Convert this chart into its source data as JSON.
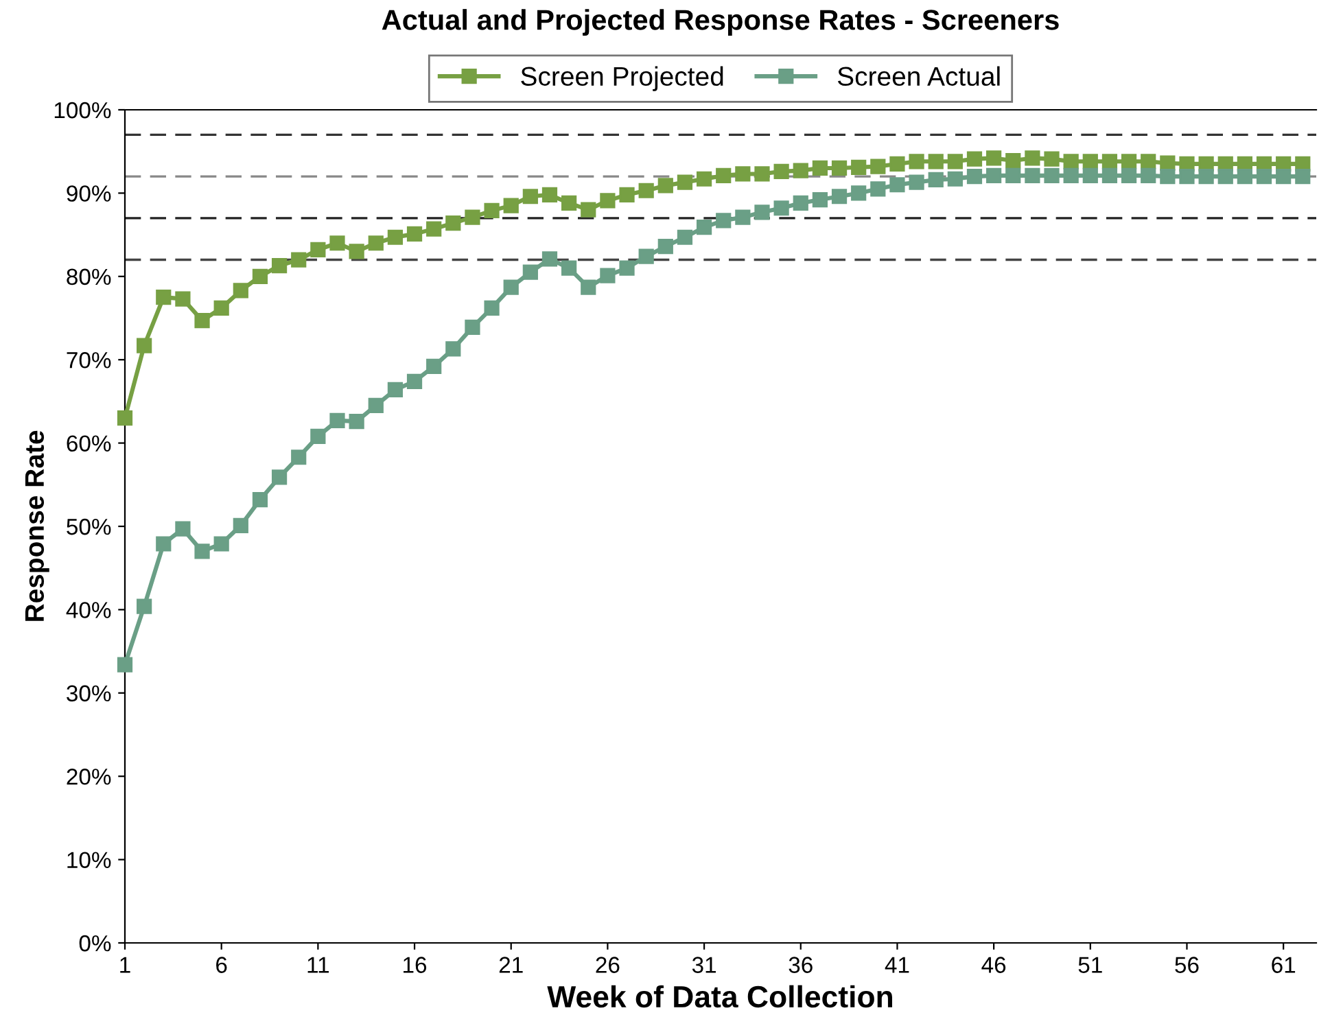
{
  "chart_data": {
    "type": "line",
    "title": "Actual and Projected Response Rates - Screeners",
    "xlabel": "Week of Data Collection",
    "ylabel": "Response Rate",
    "x": [
      1,
      2,
      3,
      4,
      5,
      6,
      7,
      8,
      9,
      10,
      11,
      12,
      13,
      14,
      15,
      16,
      17,
      18,
      19,
      20,
      21,
      22,
      23,
      24,
      25,
      26,
      27,
      28,
      29,
      30,
      31,
      32,
      33,
      34,
      35,
      36,
      37,
      38,
      39,
      40,
      41,
      42,
      43,
      44,
      45,
      46,
      47,
      48,
      49,
      50,
      51,
      52,
      53,
      54,
      55,
      56,
      57,
      58,
      59,
      60,
      61,
      62
    ],
    "series": [
      {
        "name": "Screen Projected",
        "color": "#77a043",
        "values": [
          63.0,
          71.7,
          77.5,
          77.3,
          74.7,
          76.2,
          78.3,
          80.0,
          81.3,
          82.0,
          83.2,
          84.0,
          83.0,
          84.0,
          84.7,
          85.1,
          85.7,
          86.4,
          87.1,
          87.9,
          88.5,
          89.6,
          89.8,
          88.8,
          88.0,
          89.1,
          89.8,
          90.3,
          90.9,
          91.3,
          91.7,
          92.1,
          92.3,
          92.3,
          92.6,
          92.7,
          93.0,
          93.0,
          93.1,
          93.2,
          93.5,
          93.8,
          93.8,
          93.8,
          94.1,
          94.2,
          93.9,
          94.2,
          94.1,
          93.8,
          93.8,
          93.8,
          93.8,
          93.8,
          93.6,
          93.5,
          93.5,
          93.5,
          93.5,
          93.5,
          93.5,
          93.5
        ]
      },
      {
        "name": "Screen Actual",
        "color": "#6a9f86",
        "values": [
          33.4,
          40.4,
          47.9,
          49.7,
          47.0,
          47.9,
          50.1,
          53.2,
          55.9,
          58.3,
          60.8,
          62.7,
          62.6,
          64.5,
          66.4,
          67.4,
          69.2,
          71.3,
          73.9,
          76.2,
          78.7,
          80.5,
          82.1,
          81.0,
          78.7,
          80.1,
          81.0,
          82.4,
          83.6,
          84.7,
          85.9,
          86.7,
          87.1,
          87.7,
          88.2,
          88.8,
          89.2,
          89.6,
          90.0,
          90.5,
          91.0,
          91.3,
          91.6,
          91.7,
          92.0,
          92.1,
          92.1,
          92.1,
          92.1,
          92.1,
          92.1,
          92.1,
          92.1,
          92.1,
          92.0,
          92.0,
          92.0,
          92.0,
          92.0,
          92.0,
          92.0,
          92.0
        ]
      }
    ],
    "xlim": [
      1,
      62.7
    ],
    "xticks": [
      1,
      6,
      11,
      16,
      21,
      26,
      31,
      36,
      41,
      46,
      51,
      56,
      61
    ],
    "ylim": [
      0,
      100
    ],
    "yticks": [
      {
        "value": 0,
        "label": "0%"
      },
      {
        "value": 10,
        "label": "10%"
      },
      {
        "value": 20,
        "label": "20%"
      },
      {
        "value": 30,
        "label": "30%"
      },
      {
        "value": 40,
        "label": "40%"
      },
      {
        "value": 50,
        "label": "50%"
      },
      {
        "value": 60,
        "label": "60%"
      },
      {
        "value": 70,
        "label": "70%"
      },
      {
        "value": 80,
        "label": "80%"
      },
      {
        "value": 90,
        "label": "90%"
      },
      {
        "value": 100,
        "label": "100%"
      }
    ],
    "ref_lines": [
      {
        "axis": "y",
        "value": 97,
        "color": "#333333",
        "line_style": "dashed"
      },
      {
        "axis": "y",
        "value": 92,
        "color": "#888888",
        "line_style": "dashed"
      },
      {
        "axis": "y",
        "value": 87,
        "color": "#222222",
        "line_style": "dashed"
      },
      {
        "axis": "y",
        "value": 82,
        "color": "#444444",
        "line_style": "dashed"
      }
    ],
    "marker": "square",
    "line_style": "solid",
    "grid": false,
    "legend": "top"
  }
}
